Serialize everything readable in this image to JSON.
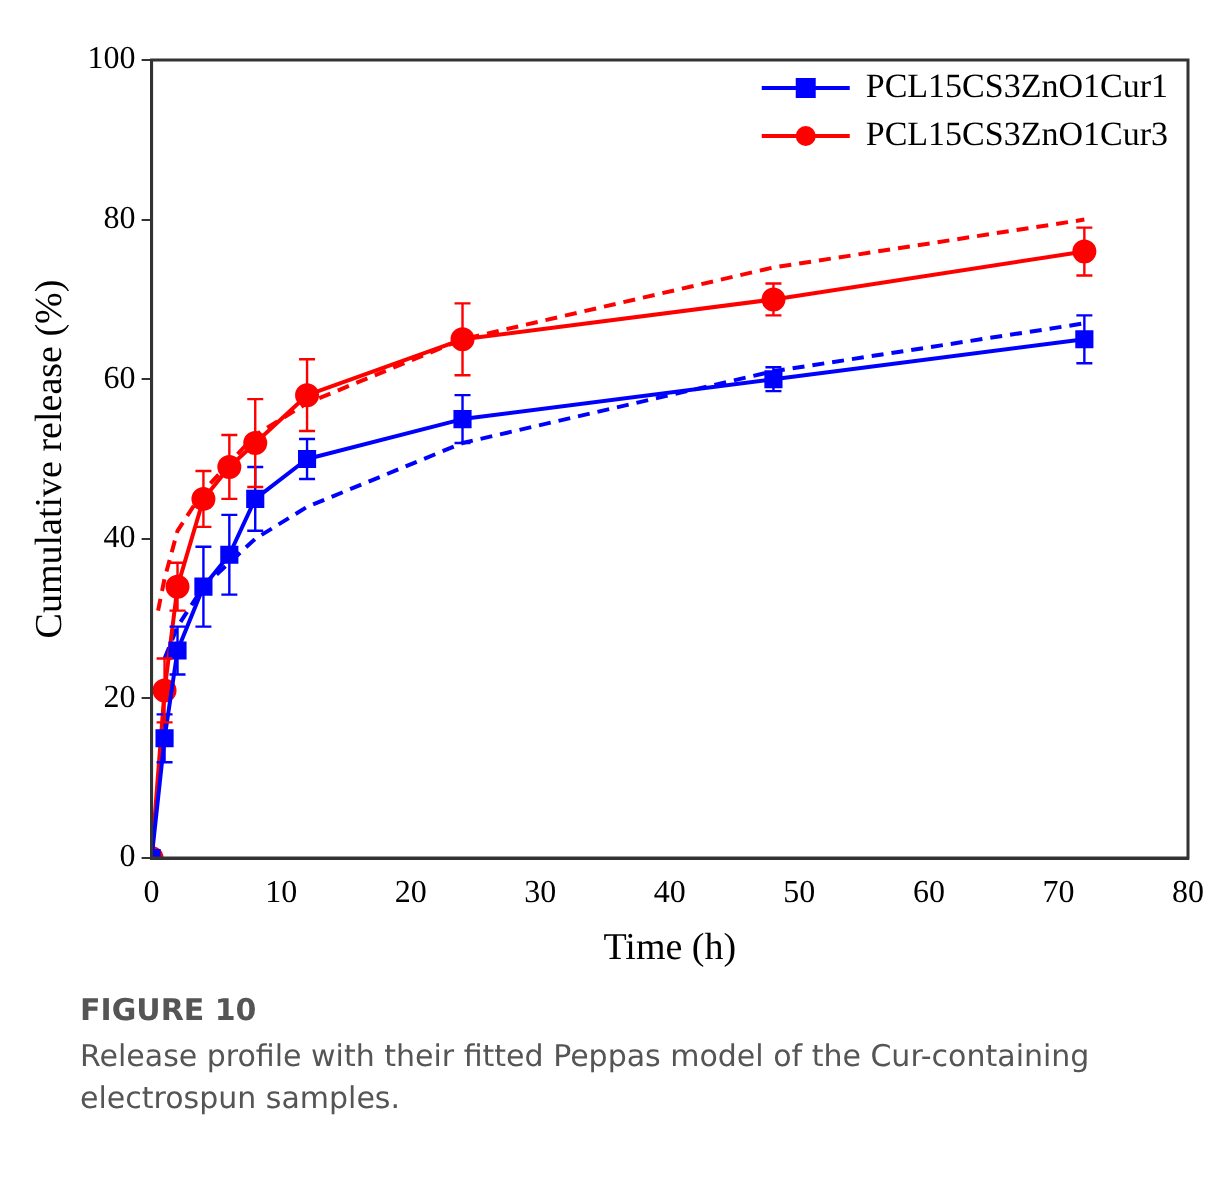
{
  "chart_data": {
    "type": "line",
    "xlabel": "Time (h)",
    "ylabel": "Cumulative release (%)",
    "x": [
      0,
      1,
      2,
      4,
      6,
      8,
      12,
      24,
      48,
      72
    ],
    "series": [
      {
        "name": "PCL15CS3ZnO1Cur1",
        "color": "#0000ff",
        "marker": "square",
        "values": [
          0,
          15,
          26,
          34,
          38,
          45,
          50,
          55,
          60,
          65
        ],
        "errors": [
          null,
          3,
          3,
          5,
          5,
          4,
          2.5,
          3,
          1.5,
          3
        ]
      },
      {
        "name": "PCL15CS3ZnO1Cur3",
        "color": "#ff0000",
        "marker": "circle",
        "values": [
          0,
          21,
          34,
          45,
          49,
          52,
          58,
          65,
          70,
          76
        ],
        "errors": [
          null,
          4,
          3,
          3.5,
          4,
          5.5,
          4.5,
          4.5,
          2,
          3
        ]
      },
      {
        "color": "#0000ff",
        "marker": "none",
        "line_style": "dashed",
        "x": [
          1,
          2,
          4,
          8,
          12,
          24,
          48,
          72
        ],
        "values": [
          25,
          29,
          34,
          40,
          44,
          52,
          61,
          67
        ]
      },
      {
        "color": "#ff0000",
        "marker": "none",
        "line_style": "dashed",
        "x": [
          0.5,
          1,
          2,
          4,
          8,
          12,
          24,
          48,
          72
        ],
        "values": [
          31,
          35,
          41,
          46,
          53,
          57,
          65,
          74,
          80
        ]
      }
    ],
    "xlim": [
      0,
      80
    ],
    "xticks": [
      0,
      10,
      20,
      30,
      40,
      50,
      60,
      70,
      80
    ],
    "ylim": [
      0,
      100
    ],
    "yticks": [
      0,
      20,
      40,
      60,
      80,
      100
    ],
    "grid": false,
    "legend": "top right",
    "annotations": [
      "FIGURE 10",
      "Release profile with their fitted Peppas model of the Cur-containing electrospun samples."
    ]
  }
}
